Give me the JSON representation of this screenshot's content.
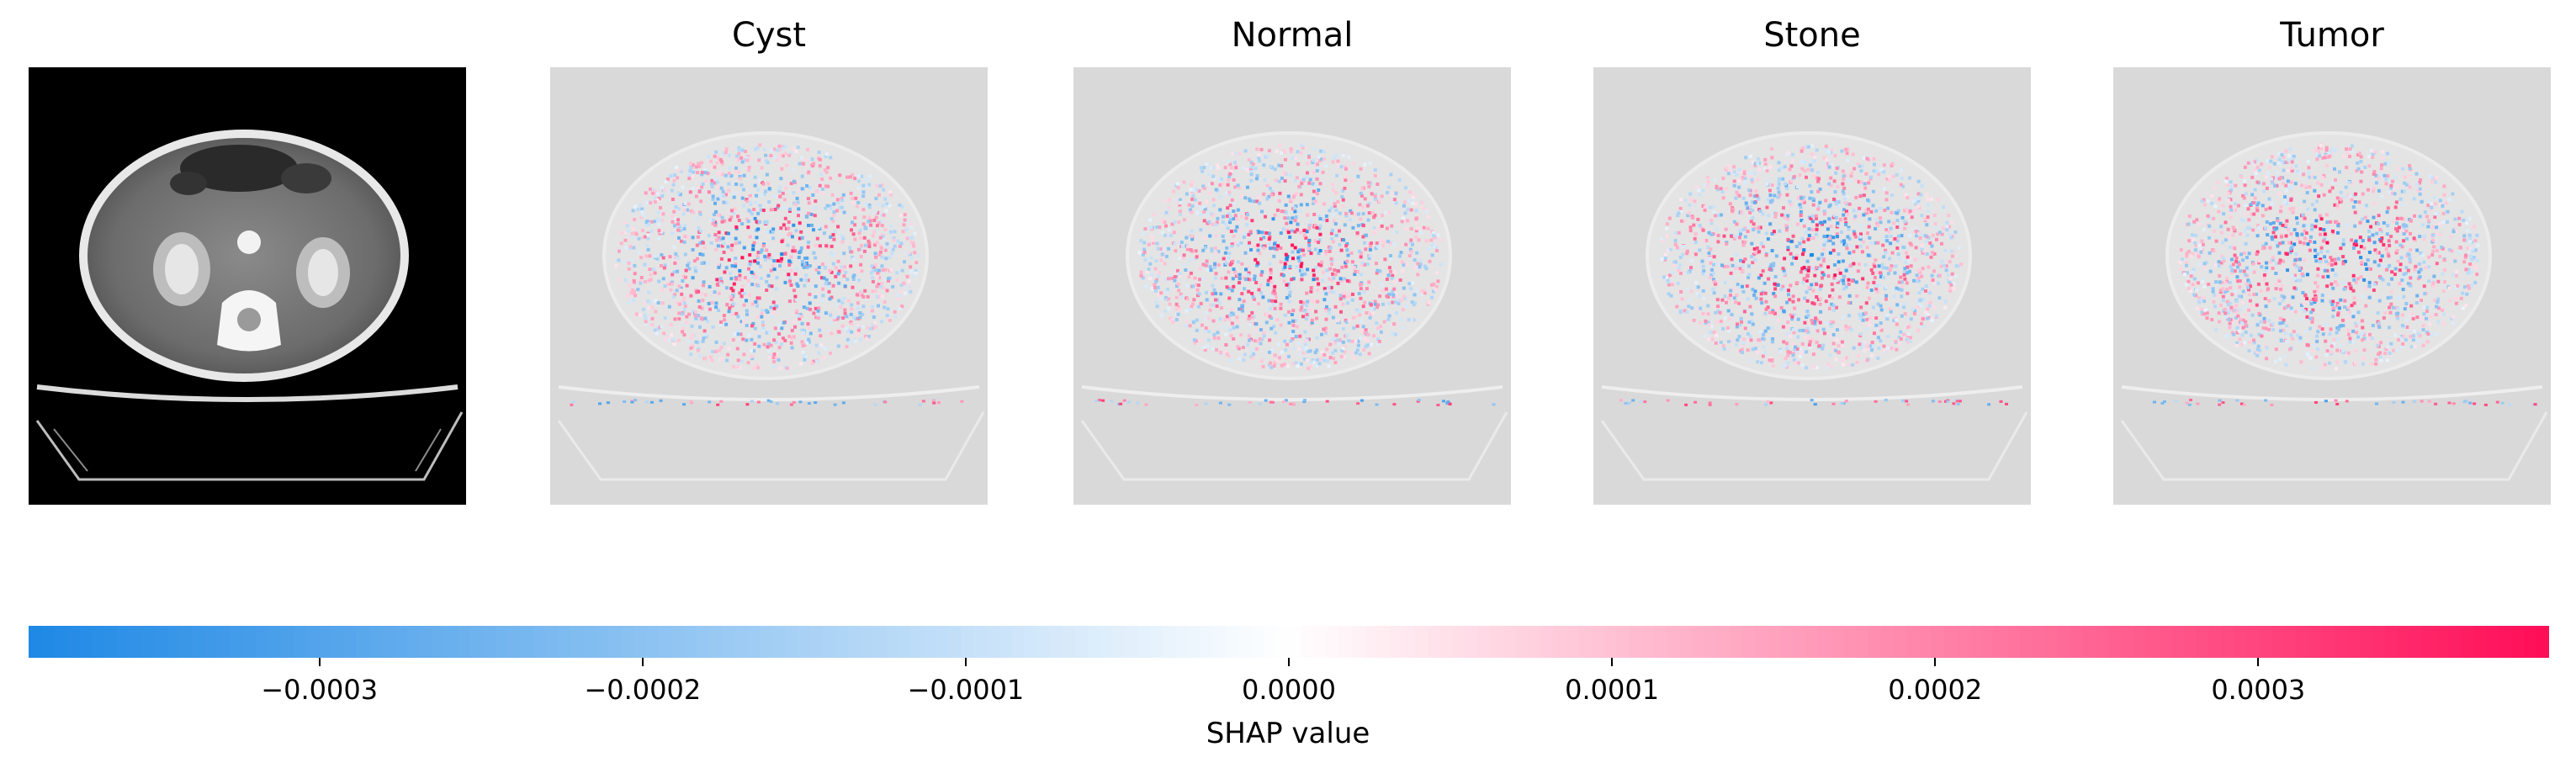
{
  "figure": {
    "panels": [
      {
        "kind": "ct",
        "name": "ct-original-image",
        "title": ""
      },
      {
        "kind": "shap",
        "name": "shap-map-cyst",
        "title": "Cyst",
        "seed": 11
      },
      {
        "kind": "shap",
        "name": "shap-map-normal",
        "title": "Normal",
        "seed": 23
      },
      {
        "kind": "shap",
        "name": "shap-map-stone",
        "title": "Stone",
        "seed": 37
      },
      {
        "kind": "shap",
        "name": "shap-map-tumor",
        "title": "Tumor",
        "seed": 51
      }
    ]
  },
  "colorbar": {
    "label": "SHAP value",
    "negative_color": "#1e88e5",
    "zero_color": "#ffffff",
    "positive_color": "#ff0d57",
    "range": [
      -0.00039,
      0.00039
    ],
    "ticks": [
      {
        "value": -0.0003,
        "label": "−0.0003"
      },
      {
        "value": -0.0002,
        "label": "−0.0002"
      },
      {
        "value": -0.0001,
        "label": "−0.0001"
      },
      {
        "value": 0.0,
        "label": "0.0000"
      },
      {
        "value": 0.0001,
        "label": "0.0001"
      },
      {
        "value": 0.0002,
        "label": "0.0002"
      },
      {
        "value": 0.0003,
        "label": "0.0003"
      }
    ]
  }
}
